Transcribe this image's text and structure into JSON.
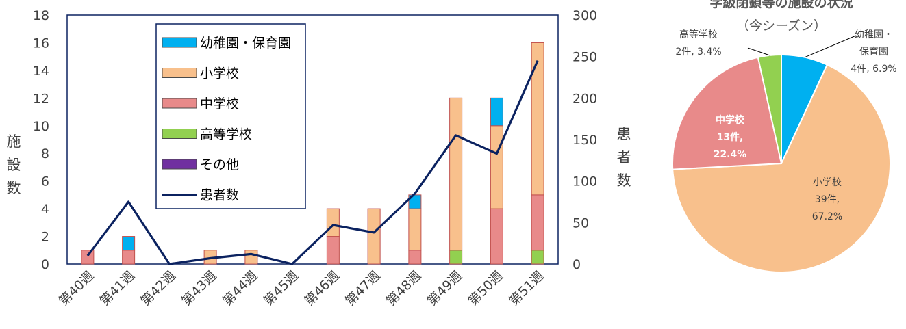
{
  "chart_data": [
    {
      "type": "bar",
      "stacked": true,
      "categories": [
        "第40週",
        "第41週",
        "第42週",
        "第43週",
        "第44週",
        "第45週",
        "第46週",
        "第47週",
        "第48週",
        "第49週",
        "第50週",
        "第51週"
      ],
      "series": [
        {
          "name": "高等学校",
          "color": "#92d050",
          "values": [
            0,
            0,
            0,
            0,
            0,
            0,
            0,
            0,
            0,
            1,
            0,
            1
          ]
        },
        {
          "name": "中学校",
          "color": "#e88a8a",
          "values": [
            1,
            1,
            0,
            0,
            0,
            0,
            2,
            0,
            1,
            0,
            4,
            4
          ]
        },
        {
          "name": "小学校",
          "color": "#f8c08c",
          "values": [
            0,
            0,
            0,
            1,
            1,
            0,
            2,
            4,
            3,
            11,
            6,
            11
          ]
        },
        {
          "name": "幼稚園・保育園",
          "color": "#00b0f0",
          "values": [
            0,
            1,
            0,
            0,
            0,
            0,
            0,
            0,
            1,
            0,
            2,
            0
          ]
        },
        {
          "name": "その他",
          "color": "#7030a0",
          "values": [
            0,
            0,
            0,
            0,
            0,
            0,
            0,
            0,
            0,
            0,
            0,
            0
          ]
        }
      ],
      "line_series": {
        "name": "患者数",
        "color": "#0b2260",
        "axis": "right",
        "values": [
          10,
          75,
          0,
          7,
          12,
          0,
          47,
          38,
          85,
          155,
          133,
          245
        ]
      },
      "ylim": [
        0,
        18
      ],
      "yticks": [
        "0",
        "2",
        "4",
        "6",
        "8",
        "10",
        "12",
        "14",
        "16",
        "18"
      ],
      "ylim_right": [
        0,
        300
      ],
      "yticks_right": [
        "0",
        "50",
        "100",
        "150",
        "200",
        "250",
        "300"
      ],
      "ylabel": [
        "施",
        "設",
        "数"
      ],
      "ylabel_right": [
        "患",
        "者",
        "数"
      ],
      "legend_order": [
        "幼稚園・保育園",
        "小学校",
        "中学校",
        "高等学校",
        "その他",
        "患者数"
      ],
      "legend_position": "top-center"
    },
    {
      "type": "pie",
      "title_line1": "学級閉鎖等の施設の状況",
      "title_line2": "（今シーズン）",
      "slices": [
        {
          "name": "幼稚園・保育園",
          "value": 4,
          "color": "#00b0f0",
          "label": [
            "幼稚園・",
            "保育園",
            "4件, 6.9%"
          ]
        },
        {
          "name": "小学校",
          "value": 39,
          "color": "#f8c08c",
          "label": [
            "小学校",
            "39件,",
            "67.2%"
          ]
        },
        {
          "name": "中学校",
          "value": 13,
          "color": "#e88a8a",
          "label": [
            "中学校",
            "13件,",
            "22.4%"
          ]
        },
        {
          "name": "高等学校",
          "value": 2,
          "color": "#92d050",
          "label": [
            "高等学校",
            "2件, 3.4%"
          ]
        }
      ]
    }
  ]
}
